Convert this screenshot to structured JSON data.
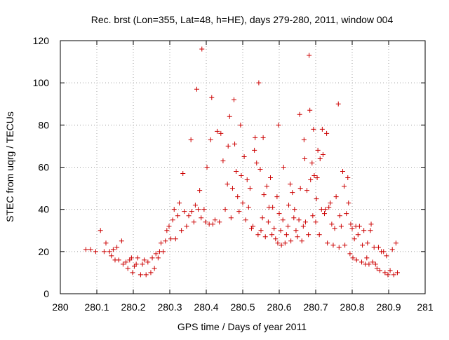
{
  "chart_data": {
    "type": "scatter",
    "title": "Rec. brst (Lon=355, Lat=48, h=HE), days 279-280, 2011, window 004",
    "xlabel": "GPS time / Days of year 2011",
    "ylabel": "STEC from uqrg / TECUs",
    "xlim": [
      280,
      281
    ],
    "ylim": [
      0,
      120
    ],
    "xticks": [
      "280",
      "280.1",
      "280.2",
      "280.3",
      "280.4",
      "280.5",
      "280.6",
      "280.7",
      "280.8",
      "280.9",
      "281"
    ],
    "yticks": [
      "0",
      "20",
      "40",
      "60",
      "80",
      "100",
      "120"
    ],
    "grid": true,
    "marker": "+",
    "marker_color": "#cc0000",
    "series": [
      {
        "points": [
          [
            280.07,
            21
          ],
          [
            280.083,
            21
          ],
          [
            280.097,
            20
          ],
          [
            280.11,
            30
          ],
          [
            280.12,
            20
          ],
          [
            280.125,
            24
          ],
          [
            280.135,
            20
          ],
          [
            280.14,
            18
          ],
          [
            280.145,
            21
          ],
          [
            280.15,
            16
          ],
          [
            280.155,
            22
          ],
          [
            280.16,
            16
          ],
          [
            280.168,
            25
          ],
          [
            280.172,
            14
          ],
          [
            280.18,
            15
          ],
          [
            280.185,
            12
          ],
          [
            280.19,
            16
          ],
          [
            280.195,
            17
          ],
          [
            280.198,
            10
          ],
          [
            280.203,
            13
          ],
          [
            280.208,
            14
          ],
          [
            280.212,
            17
          ],
          [
            280.22,
            9
          ],
          [
            280.225,
            14
          ],
          [
            280.23,
            16
          ],
          [
            280.235,
            9
          ],
          [
            280.24,
            15
          ],
          [
            280.248,
            10
          ],
          [
            280.252,
            17
          ],
          [
            280.258,
            12
          ],
          [
            280.262,
            19
          ],
          [
            280.268,
            17
          ],
          [
            280.272,
            20
          ],
          [
            280.276,
            24
          ],
          [
            280.282,
            20
          ],
          [
            280.288,
            25
          ],
          [
            280.292,
            30
          ],
          [
            280.298,
            32
          ],
          [
            280.303,
            26
          ],
          [
            280.308,
            35
          ],
          [
            280.312,
            40
          ],
          [
            280.316,
            26
          ],
          [
            280.322,
            37
          ],
          [
            280.326,
            43
          ],
          [
            280.332,
            30
          ],
          [
            280.336,
            57
          ],
          [
            280.34,
            39
          ],
          [
            280.346,
            32
          ],
          [
            280.352,
            37
          ],
          [
            280.358,
            73
          ],
          [
            280.36,
            39
          ],
          [
            280.366,
            34
          ],
          [
            280.37,
            42
          ],
          [
            280.374,
            97
          ],
          [
            280.378,
            40
          ],
          [
            280.382,
            49
          ],
          [
            280.386,
            36
          ],
          [
            280.388,
            116
          ],
          [
            280.394,
            40
          ],
          [
            280.398,
            34
          ],
          [
            280.402,
            60
          ],
          [
            280.408,
            33
          ],
          [
            280.412,
            73
          ],
          [
            280.415,
            93
          ],
          [
            280.418,
            33
          ],
          [
            280.424,
            35
          ],
          [
            280.43,
            77
          ],
          [
            280.436,
            34
          ],
          [
            280.44,
            76
          ],
          [
            280.446,
            63
          ],
          [
            280.452,
            40
          ],
          [
            280.458,
            52
          ],
          [
            280.46,
            70
          ],
          [
            280.464,
            84
          ],
          [
            280.468,
            36
          ],
          [
            280.472,
            50
          ],
          [
            280.476,
            92
          ],
          [
            280.478,
            71
          ],
          [
            280.482,
            58
          ],
          [
            280.486,
            46
          ],
          [
            280.49,
            39
          ],
          [
            280.494,
            80
          ],
          [
            280.496,
            56
          ],
          [
            280.5,
            43
          ],
          [
            280.504,
            65
          ],
          [
            280.508,
            35
          ],
          [
            280.512,
            54
          ],
          [
            280.516,
            41
          ],
          [
            280.52,
            50
          ],
          [
            280.524,
            31
          ],
          [
            280.528,
            32
          ],
          [
            280.532,
            68
          ],
          [
            280.534,
            74
          ],
          [
            280.538,
            62
          ],
          [
            280.542,
            28
          ],
          [
            280.544,
            100
          ],
          [
            280.548,
            59
          ],
          [
            280.55,
            30
          ],
          [
            280.554,
            36
          ],
          [
            280.556,
            74
          ],
          [
            280.558,
            47
          ],
          [
            280.562,
            27
          ],
          [
            280.566,
            51
          ],
          [
            280.57,
            34
          ],
          [
            280.572,
            41
          ],
          [
            280.576,
            55
          ],
          [
            280.58,
            28
          ],
          [
            280.582,
            41
          ],
          [
            280.586,
            31
          ],
          [
            280.59,
            26
          ],
          [
            280.594,
            46
          ],
          [
            280.596,
            24
          ],
          [
            280.598,
            80
          ],
          [
            280.6,
            38
          ],
          [
            280.604,
            30
          ],
          [
            280.606,
            23
          ],
          [
            280.61,
            35
          ],
          [
            280.612,
            60
          ],
          [
            280.616,
            24
          ],
          [
            280.62,
            28
          ],
          [
            280.624,
            32
          ],
          [
            280.626,
            42
          ],
          [
            280.63,
            52
          ],
          [
            280.632,
            25
          ],
          [
            280.636,
            48
          ],
          [
            280.64,
            36
          ],
          [
            280.642,
            40
          ],
          [
            280.646,
            30
          ],
          [
            280.65,
            27
          ],
          [
            280.654,
            35
          ],
          [
            280.656,
            85
          ],
          [
            280.658,
            50
          ],
          [
            280.662,
            25
          ],
          [
            280.666,
            32
          ],
          [
            280.668,
            73
          ],
          [
            280.67,
            64
          ],
          [
            280.672,
            34
          ],
          [
            280.676,
            49
          ],
          [
            280.68,
            28
          ],
          [
            280.682,
            113
          ],
          [
            280.684,
            87
          ],
          [
            280.686,
            54
          ],
          [
            280.69,
            62
          ],
          [
            280.692,
            37
          ],
          [
            280.694,
            78
          ],
          [
            280.696,
            56
          ],
          [
            280.7,
            34
          ],
          [
            280.702,
            45
          ],
          [
            280.704,
            55
          ],
          [
            280.706,
            68
          ],
          [
            280.71,
            28
          ],
          [
            280.712,
            64
          ],
          [
            280.716,
            40
          ],
          [
            280.718,
            78
          ],
          [
            280.72,
            66
          ],
          [
            280.724,
            38
          ],
          [
            280.726,
            40
          ],
          [
            280.73,
            76
          ],
          [
            280.732,
            24
          ],
          [
            280.736,
            41
          ],
          [
            280.74,
            43
          ],
          [
            280.744,
            33
          ],
          [
            280.748,
            23
          ],
          [
            280.752,
            31
          ],
          [
            280.756,
            46
          ],
          [
            280.762,
            90
          ],
          [
            280.764,
            22
          ],
          [
            280.766,
            37
          ],
          [
            280.77,
            32
          ],
          [
            280.774,
            58
          ],
          [
            280.778,
            51
          ],
          [
            280.78,
            23
          ],
          [
            280.784,
            38
          ],
          [
            280.788,
            55
          ],
          [
            280.79,
            43
          ],
          [
            280.794,
            19
          ],
          [
            280.796,
            33
          ],
          [
            280.8,
            31
          ],
          [
            280.802,
            17
          ],
          [
            280.806,
            26
          ],
          [
            280.81,
            32
          ],
          [
            280.812,
            16
          ],
          [
            280.816,
            28
          ],
          [
            280.82,
            32
          ],
          [
            280.826,
            15
          ],
          [
            280.828,
            23
          ],
          [
            280.832,
            30
          ],
          [
            280.836,
            14
          ],
          [
            280.84,
            17
          ],
          [
            280.842,
            24
          ],
          [
            280.846,
            14
          ],
          [
            280.85,
            30
          ],
          [
            280.852,
            33
          ],
          [
            280.856,
            15
          ],
          [
            280.86,
            22
          ],
          [
            280.864,
            14
          ],
          [
            280.868,
            12
          ],
          [
            280.872,
            22
          ],
          [
            280.876,
            11
          ],
          [
            280.88,
            20
          ],
          [
            280.886,
            20
          ],
          [
            280.89,
            10
          ],
          [
            280.894,
            18
          ],
          [
            280.898,
            9
          ],
          [
            280.904,
            11
          ],
          [
            280.91,
            21
          ],
          [
            280.914,
            9
          ],
          [
            280.92,
            24
          ],
          [
            280.924,
            10
          ]
        ]
      }
    ]
  }
}
